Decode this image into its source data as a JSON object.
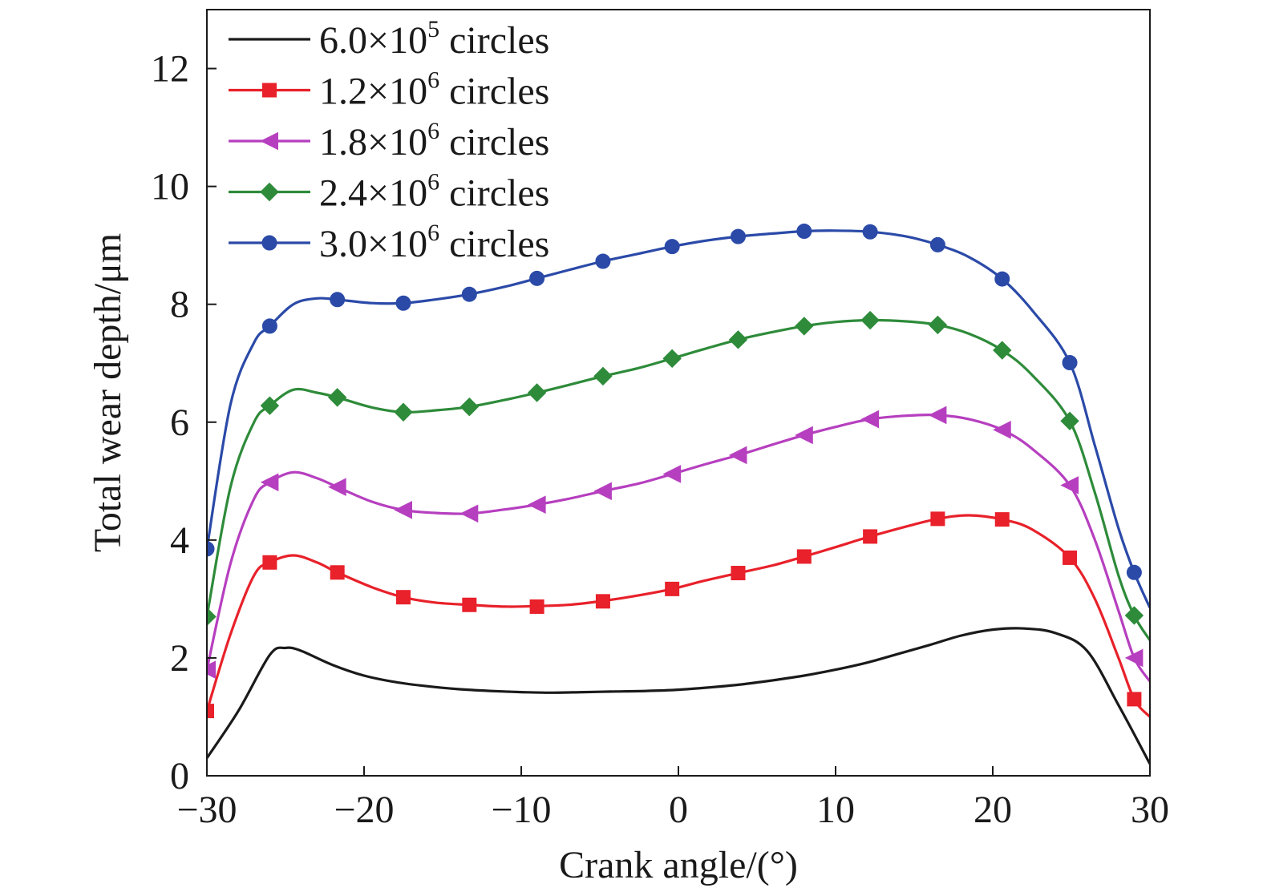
{
  "chart_data": {
    "type": "line",
    "title": "",
    "xlabel": "Crank angle/(°)",
    "ylabel": "Total wear depth/μm",
    "xlim": [
      -30,
      30
    ],
    "ylim": [
      0,
      13
    ],
    "xticks": [
      -30,
      -20,
      -10,
      0,
      10,
      20,
      30
    ],
    "xtick_labels": [
      "−30",
      "−20",
      "−10",
      "0",
      "10",
      "20",
      "30"
    ],
    "yticks": [
      0,
      2,
      4,
      6,
      8,
      10,
      12
    ],
    "ytick_labels": [
      "0",
      "2",
      "4",
      "6",
      "8",
      "10",
      "12"
    ],
    "grid": false,
    "legend_position": "top-left",
    "series": [
      {
        "name_base": "6.0×10",
        "name_exp": "5",
        "name_suffix": " circles",
        "color": "#1a1a1a",
        "marker": "none",
        "x": [
          -30,
          -28,
          -26,
          -25,
          -24,
          -22,
          -20,
          -18,
          -16,
          -14,
          -12,
          -10,
          -8,
          -6,
          -4,
          -2,
          0,
          2,
          4,
          6,
          8,
          10,
          12,
          14,
          16,
          18,
          20,
          22,
          24,
          26,
          28,
          30
        ],
        "y": [
          0.3,
          1.1,
          2.05,
          2.17,
          2.12,
          1.88,
          1.7,
          1.59,
          1.52,
          1.47,
          1.44,
          1.42,
          1.41,
          1.42,
          1.43,
          1.44,
          1.46,
          1.5,
          1.55,
          1.62,
          1.7,
          1.8,
          1.92,
          2.07,
          2.22,
          2.38,
          2.48,
          2.5,
          2.42,
          2.12,
          1.2,
          0.2
        ]
      },
      {
        "name_base": "1.2×10",
        "name_exp": "6",
        "name_suffix": " circles",
        "color": "#e8212a",
        "marker": "square",
        "x": [
          -30,
          -28.5,
          -27,
          -26,
          -24.5,
          -23,
          -21.7,
          -19.5,
          -17.5,
          -15.5,
          -13.3,
          -11,
          -9,
          -7,
          -5,
          -3,
          -0.4,
          1.5,
          3.8,
          6,
          8,
          10,
          12.2,
          14.5,
          16.5,
          18.5,
          20.6,
          22.5,
          24.9,
          26.5,
          28,
          29,
          30
        ],
        "y": [
          1.1,
          2.4,
          3.4,
          3.62,
          3.74,
          3.62,
          3.45,
          3.2,
          3.03,
          2.94,
          2.9,
          2.87,
          2.88,
          2.9,
          2.96,
          3.04,
          3.17,
          3.3,
          3.44,
          3.57,
          3.72,
          3.88,
          4.06,
          4.23,
          4.36,
          4.42,
          4.35,
          4.18,
          3.7,
          3.0,
          2.0,
          1.3,
          1.0
        ],
        "marker_x": [
          -30,
          -26,
          -21.7,
          -17.5,
          -13.3,
          -9,
          -4.8,
          -0.4,
          3.8,
          8,
          12.2,
          16.5,
          20.6,
          24.9,
          29
        ],
        "marker_y": [
          1.1,
          3.62,
          3.45,
          3.03,
          2.9,
          2.87,
          2.96,
          3.17,
          3.44,
          3.72,
          4.06,
          4.36,
          4.35,
          3.7,
          1.3
        ]
      },
      {
        "name_base": "1.8×10",
        "name_exp": "6",
        "name_suffix": " circles",
        "color": "#b63fbf",
        "marker": "triangle-left",
        "x": [
          -30,
          -28.5,
          -27,
          -26,
          -24.5,
          -23,
          -21.7,
          -19.5,
          -17.5,
          -15.5,
          -13.3,
          -11,
          -9,
          -7,
          -4.8,
          -2.5,
          -0.4,
          1.5,
          3.8,
          6,
          8,
          10,
          12.2,
          14.5,
          16.5,
          18.5,
          20.6,
          22.5,
          24.9,
          26.5,
          28,
          29,
          30
        ],
        "y": [
          1.8,
          3.6,
          4.7,
          4.98,
          5.15,
          5.05,
          4.9,
          4.65,
          4.51,
          4.46,
          4.45,
          4.52,
          4.6,
          4.7,
          4.83,
          4.96,
          5.12,
          5.27,
          5.44,
          5.62,
          5.78,
          5.92,
          6.05,
          6.11,
          6.12,
          6.05,
          5.87,
          5.55,
          4.93,
          4.0,
          2.8,
          2.0,
          1.6
        ],
        "marker_x": [
          -30,
          -26,
          -21.7,
          -17.5,
          -13.3,
          -9,
          -4.8,
          -0.4,
          3.8,
          8,
          12.2,
          16.5,
          20.6,
          24.9,
          29
        ],
        "marker_y": [
          1.8,
          4.98,
          4.9,
          4.51,
          4.45,
          4.6,
          4.83,
          5.12,
          5.44,
          5.78,
          6.05,
          6.12,
          5.87,
          4.93,
          2.0
        ]
      },
      {
        "name_base": "2.4×10",
        "name_exp": "6",
        "name_suffix": " circles",
        "color": "#2e8b3a",
        "marker": "diamond",
        "x": [
          -30,
          -28.5,
          -27,
          -26,
          -24.5,
          -23,
          -21.7,
          -19.5,
          -17.5,
          -15.5,
          -13.3,
          -11,
          -9,
          -7,
          -4.8,
          -2.5,
          -0.4,
          1.5,
          3.8,
          6,
          8,
          10,
          12.2,
          14.5,
          16.5,
          18.5,
          20.6,
          22.5,
          24.9,
          26.5,
          28,
          29,
          30
        ],
        "y": [
          2.7,
          4.9,
          6.0,
          6.28,
          6.55,
          6.5,
          6.42,
          6.25,
          6.17,
          6.2,
          6.26,
          6.38,
          6.5,
          6.63,
          6.78,
          6.92,
          7.08,
          7.23,
          7.4,
          7.53,
          7.63,
          7.7,
          7.73,
          7.71,
          7.65,
          7.5,
          7.22,
          6.8,
          6.02,
          4.8,
          3.4,
          2.72,
          2.3
        ],
        "marker_x": [
          -30,
          -26,
          -21.7,
          -17.5,
          -13.3,
          -9,
          -4.8,
          -0.4,
          3.8,
          8,
          12.2,
          16.5,
          20.6,
          24.9,
          29
        ],
        "marker_y": [
          2.7,
          6.28,
          6.42,
          6.17,
          6.26,
          6.5,
          6.78,
          7.08,
          7.4,
          7.63,
          7.73,
          7.65,
          7.22,
          6.02,
          2.72
        ]
      },
      {
        "name_base": "3.0×10",
        "name_exp": "6",
        "name_suffix": " circles",
        "color": "#2b4aa8",
        "marker": "circle",
        "x": [
          -30,
          -28.5,
          -27,
          -26,
          -24.5,
          -23,
          -21.7,
          -19.5,
          -17.5,
          -15.5,
          -13.3,
          -11,
          -9,
          -7,
          -4.8,
          -2.5,
          -0.4,
          1.5,
          3.8,
          6,
          8,
          10,
          12.2,
          14.5,
          16.5,
          18.5,
          20.6,
          22.5,
          24.9,
          26.5,
          28,
          29,
          30
        ],
        "y": [
          3.85,
          6.3,
          7.35,
          7.63,
          8.0,
          8.1,
          8.08,
          8.02,
          8.02,
          8.08,
          8.17,
          8.3,
          8.44,
          8.58,
          8.73,
          8.86,
          8.98,
          9.07,
          9.15,
          9.2,
          9.24,
          9.25,
          9.23,
          9.15,
          9.01,
          8.8,
          8.43,
          7.9,
          7.01,
          5.6,
          4.2,
          3.45,
          2.85
        ],
        "marker_x": [
          -30,
          -26,
          -21.7,
          -17.5,
          -13.3,
          -9,
          -4.8,
          -0.4,
          3.8,
          8,
          12.2,
          16.5,
          20.6,
          24.9,
          29
        ],
        "marker_y": [
          3.85,
          7.63,
          8.08,
          8.02,
          8.17,
          8.44,
          8.73,
          8.98,
          9.15,
          9.24,
          9.23,
          9.01,
          8.43,
          7.01,
          3.45
        ]
      }
    ]
  }
}
